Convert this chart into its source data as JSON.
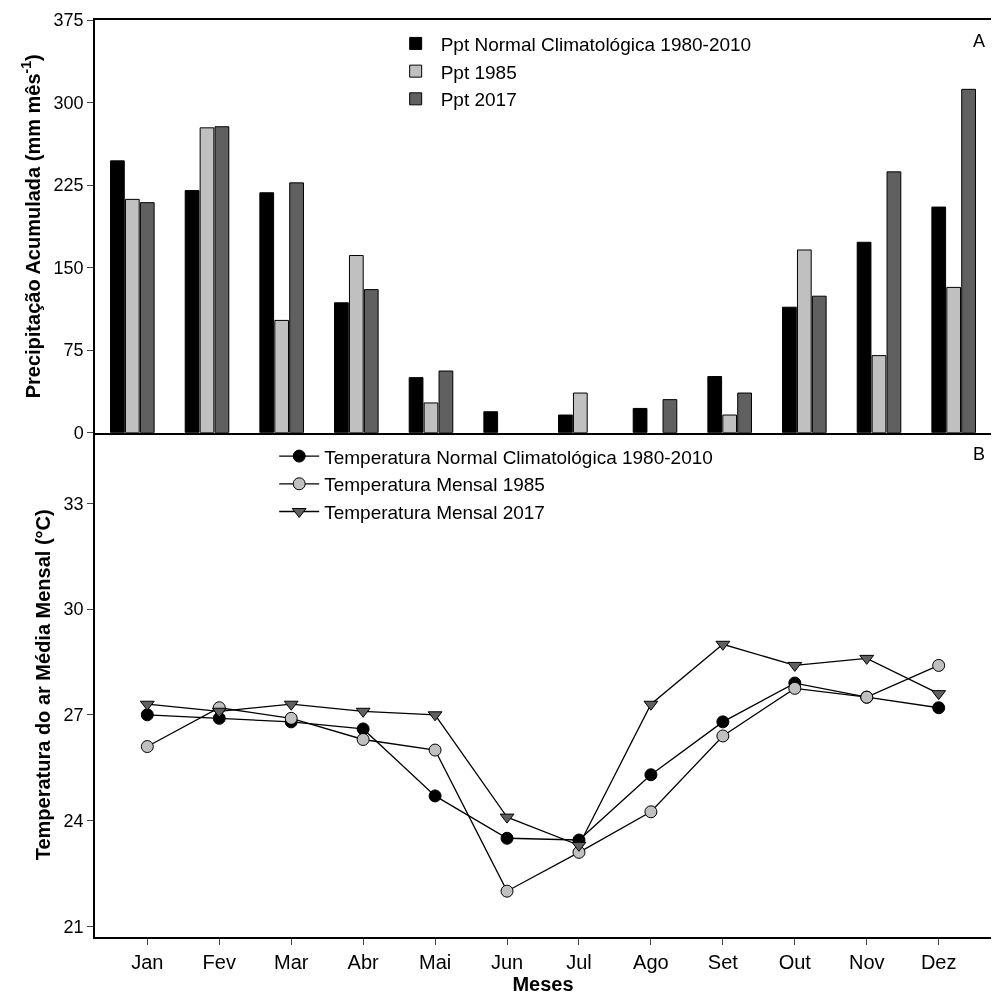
{
  "chart_data": [
    {
      "type": "bar",
      "ylabel": "Precipitação Acumulada (mm mês$^{-1}$)",
      "categories": [
        "Jan",
        "Fev",
        "Mar",
        "Abr",
        "Mai",
        "Jun",
        "Jul",
        "Ago",
        "Set",
        "Out",
        "Nov",
        "Dez"
      ],
      "ylim": [
        0,
        375
      ],
      "yticks": [
        0,
        75,
        150,
        225,
        300,
        375
      ],
      "tick_labels": "y",
      "legend": "top",
      "grid": false,
      "annotations": [
        "A"
      ],
      "series": [
        {
          "name": "Ppt Normal Climatológica 1980-2010",
          "color": "#000000",
          "values": [
            247,
            220,
            218,
            118,
            50,
            19,
            16,
            22,
            51,
            114,
            173,
            205
          ]
        },
        {
          "name": "Ppt 1985",
          "color": "#c0c0c0",
          "values": [
            212,
            277,
            102,
            161,
            27,
            null,
            36,
            null,
            16,
            166,
            70,
            132
          ]
        },
        {
          "name": "Ppt 2017",
          "color": "#606060",
          "values": [
            209,
            278,
            227,
            130,
            56,
            null,
            null,
            30,
            36,
            124,
            237,
            312
          ]
        }
      ]
    },
    {
      "type": "line",
      "xlabel": "Meses",
      "ylabel": "Temperatura do ar Média Mensal (°C)",
      "categories": [
        "Jan",
        "Fev",
        "Mar",
        "Abr",
        "Mai",
        "Jun",
        "Jul",
        "Ago",
        "Set",
        "Out",
        "Nov",
        "Dez"
      ],
      "ylim": [
        20.7,
        35
      ],
      "yticks": [
        21,
        24,
        27,
        30,
        33
      ],
      "legend": "top",
      "grid": false,
      "line_style": "solid",
      "annotations": [
        "B"
      ],
      "series": [
        {
          "name": "Temperatura Normal Climatológica 1980-2010",
          "color": "#000000",
          "marker": "circle",
          "values": [
            27.0,
            26.9,
            26.8,
            26.6,
            24.7,
            23.5,
            23.45,
            25.3,
            26.8,
            27.9,
            27.5,
            27.2
          ]
        },
        {
          "name": "Temperatura Mensal 1985",
          "color": "#c0c0c0",
          "marker": "circle",
          "values": [
            26.1,
            27.2,
            26.9,
            26.3,
            26.0,
            22.0,
            23.1,
            24.25,
            26.4,
            27.75,
            27.5,
            28.4
          ]
        },
        {
          "name": "Temperatura Mensal 2017",
          "color": "#606060",
          "marker": "triangle",
          "values": [
            27.3,
            27.1,
            27.3,
            27.1,
            27.0,
            24.1,
            23.3,
            27.3,
            29.0,
            28.4,
            28.6,
            27.6
          ]
        }
      ]
    }
  ]
}
